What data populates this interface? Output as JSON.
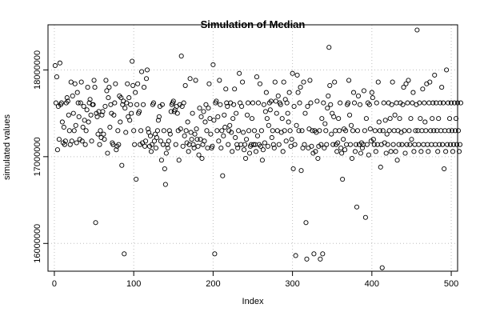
{
  "chart_data": {
    "type": "scatter",
    "title": "Simulation of Median",
    "xlabel": "Index",
    "ylabel": "simulated values",
    "xlim": [
      -8,
      508
    ],
    "ylim": [
      15680000,
      18520000
    ],
    "xticks": [
      0,
      100,
      200,
      300,
      400,
      500
    ],
    "yticks": [
      16000000,
      17000000,
      18000000
    ],
    "xtick_labels": [
      "0",
      "100",
      "200",
      "300",
      "400",
      "500"
    ],
    "ytick_labels": [
      "16000000",
      "17000000",
      "18000000"
    ],
    "grid": true,
    "marker": "open-circle",
    "values": [
      18050000,
      17620000,
      17920000,
      17080000,
      17580000,
      17200000,
      18080000,
      17600000,
      17620000,
      17400000,
      17160000,
      17340000,
      17140000,
      17180000,
      17620000,
      17680000,
      17640000,
      17480000,
      17300000,
      17140000,
      17860000,
      17180000,
      17700000,
      17500000,
      17300000,
      17840000,
      17360000,
      17160000,
      17740000,
      17620000,
      17460000,
      17200000,
      17620000,
      17860000,
      17180000,
      17340000,
      17580000,
      17420000,
      17140000,
      17300000,
      17540000,
      17800000,
      17400000,
      17620000,
      17660000,
      17480000,
      17180000,
      17600000,
      17600000,
      17880000,
      17800000,
      16240000,
      17500000,
      17460000,
      17260000,
      17520000,
      17140000,
      17300000,
      17220000,
      17480000,
      17520000,
      17260000,
      17200000,
      17580000,
      17880000,
      17760000,
      17040000,
      17680000,
      17800000,
      17340000,
      17600000,
      17500000,
      17160000,
      17140000,
      17480000,
      17620000,
      17840000,
      17080000,
      17120000,
      17300000,
      17140000,
      17700000,
      17400000,
      17680000,
      16900000,
      17600000,
      17640000,
      15880000,
      17560000,
      17280000,
      17620000,
      17840000,
      17460000,
      17680000,
      17420000,
      17600000,
      17500000,
      18100000,
      17820000,
      17300000,
      17140000,
      17740000,
      16740000,
      17600000,
      17840000,
      17500000,
      17520000,
      17140000,
      17300000,
      17980000,
      17160000,
      17600000,
      17800000,
      17120000,
      17180000,
      17900000,
      18000000,
      17320000,
      17280000,
      17120000,
      17240000,
      17060000,
      17140000,
      17600000,
      17620000,
      17180000,
      17260000,
      17100000,
      17220000,
      17300000,
      17420000,
      17460000,
      17580000,
      17180000,
      16960000,
      17600000,
      17140000,
      17300000,
      16860000,
      16680000,
      17040000,
      17140000,
      17100000,
      17180000,
      17300000,
      17260000,
      17520000,
      17600000,
      17620000,
      17640000,
      17520000,
      17540000,
      17140000,
      17580000,
      17500000,
      17300000,
      16960000,
      17600000,
      17320000,
      18160000,
      17580000,
      17120000,
      17620000,
      17240000,
      17820000,
      17300000,
      17160000,
      17400000,
      17060000,
      17140000,
      17900000,
      17280000,
      17200000,
      17500000,
      17140000,
      17100000,
      17260000,
      17880000,
      17320000,
      17200000,
      17120000,
      17020000,
      17560000,
      17200000,
      17460000,
      16980000,
      17140000,
      17520000,
      17180000,
      17400000,
      17600000,
      17300000,
      17100000,
      17560000,
      17840000,
      17440000,
      17260000,
      17100000,
      17120000,
      18060000,
      17420000,
      15880000,
      17620000,
      17640000,
      17300000,
      17460000,
      17180000,
      17880000,
      17600000,
      17100000,
      17300000,
      16780000,
      17240000,
      17480000,
      17340000,
      17780000,
      17620000,
      17580000,
      17140000,
      17300000,
      17360000,
      17620000,
      17280000,
      17060000,
      17440000,
      17600000,
      17780000,
      17220000,
      17500000,
      17140000,
      17100000,
      17300000,
      17960000,
      17620000,
      17140000,
      17580000,
      17860000,
      17280000,
      17080000,
      17140000,
      16980000,
      17200000,
      17480000,
      17620000,
      17300000,
      17040000,
      17120000,
      17140000,
      17440000,
      17620000,
      17140000,
      17300000,
      17140000,
      17060000,
      17920000,
      17240000,
      17620000,
      17140000,
      17840000,
      17120000,
      17300000,
      16960000,
      17080000,
      17600000,
      17160000,
      17520000,
      17740000,
      17440000,
      17120000,
      17360000,
      17620000,
      17540000,
      17640000,
      17220000,
      17300000,
      17140000,
      17100000,
      17860000,
      17640000,
      17500000,
      17300000,
      17700000,
      17140000,
      17620000,
      17600000,
      17280000,
      17440000,
      17060000,
      17860000,
      17300000,
      17660000,
      17180000,
      17620000,
      17500000,
      17400000,
      17740000,
      17300000,
      17120000,
      17200000,
      17960000,
      16860000,
      17580000,
      17140000,
      15860000,
      17360000,
      17940000,
      17740000,
      17300000,
      17620000,
      17800000,
      16840000,
      17300000,
      17100000,
      17860000,
      17140000,
      17500000,
      16240000,
      15820000,
      17580000,
      17100000,
      17320000,
      17880000,
      17620000,
      17120000,
      17300000,
      17040000,
      15880000,
      17300000,
      17060000,
      17280000,
      17640000,
      16980000,
      17120000,
      17300000,
      15820000,
      17140000,
      17440000,
      15880000,
      17620000,
      17100000,
      17380000,
      17300000,
      17140000,
      17560000,
      17700000,
      18260000,
      17820000,
      17600000,
      17260000,
      17500000,
      17140000,
      17460000,
      17860000,
      17300000,
      17140000,
      17060000,
      17160000,
      17440000,
      17300000,
      17620000,
      17100000,
      17040000,
      16740000,
      17200000,
      17320000,
      17080000,
      17300000,
      17140000,
      17600000,
      17620000,
      17880000,
      17480000,
      17140000,
      17360000,
      16980000,
      17300000,
      17740000,
      17620000,
      17060000,
      17140000,
      16420000,
      17300000,
      17700000,
      17140000,
      17600000,
      17040000,
      17160000,
      17100000,
      17140000,
      17760000,
      17300000,
      16300000,
      17440000,
      17140000,
      17620000,
      17020000,
      17600000,
      17320000,
      17180000,
      17740000,
      17680000,
      17200000,
      17140000,
      17300000,
      17060000,
      17620000,
      17140000,
      17860000,
      17400000,
      17300000,
      16880000,
      17140000,
      15720000,
      17300000,
      17620000,
      17160000,
      17420000,
      17040000,
      17260000,
      17140000,
      17620000,
      17300000,
      17440000,
      17060000,
      17600000,
      17860000,
      17140000,
      17300000,
      17480000,
      17060000,
      17620000,
      16960000,
      17300000,
      17140000,
      17440000,
      17620000,
      17280000,
      17140000,
      17600000,
      17800000,
      17300000,
      17040000,
      17840000,
      17140000,
      17620000,
      17880000,
      17300000,
      17140000,
      17440000,
      17200000,
      17620000,
      17740000,
      17060000,
      17140000,
      17300000,
      17600000,
      18460000,
      17300000,
      17140000,
      17620000,
      17440000,
      17060000,
      17300000,
      17780000,
      17140000,
      17620000,
      17400000,
      17300000,
      17840000,
      17140000,
      17060000,
      17620000,
      17860000,
      17300000,
      17140000,
      17440000,
      17620000,
      17300000,
      17940000,
      17140000,
      17620000,
      17300000,
      17060000,
      17440000,
      17140000,
      17620000,
      17300000,
      17800000,
      17140000,
      17620000,
      16860000,
      17300000,
      17060000,
      18000000,
      17140000,
      17620000,
      17300000,
      17440000,
      17140000,
      17620000,
      17300000,
      17060000,
      17140000,
      17620000,
      17300000,
      17440000,
      17140000,
      17620000,
      17300000,
      17060000,
      17140000,
      17620000
    ]
  }
}
